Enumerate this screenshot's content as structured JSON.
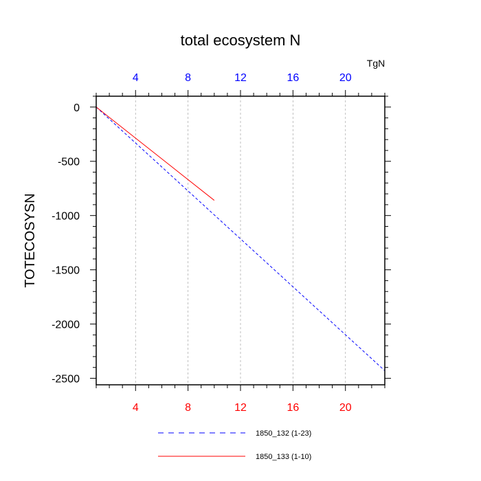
{
  "chart_data": {
    "type": "line",
    "title": "total ecosystem N",
    "unit_label": "TgN",
    "ylabel": "TOTECOSYSN",
    "xlabel": "",
    "xlim": [
      1,
      23
    ],
    "ylim": [
      -2560,
      100
    ],
    "x_ticks": [
      4,
      8,
      12,
      16,
      20
    ],
    "y_ticks": [
      0,
      -500,
      -1000,
      -1500,
      -2000,
      -2500
    ],
    "grid_vertical": true,
    "legend_position": "bottom",
    "series": [
      {
        "name": "1850_132 (1-23)",
        "color": "#0000ff",
        "style": "dashed",
        "x": [
          1,
          23
        ],
        "y": [
          0,
          -2430
        ]
      },
      {
        "name": "1850_133 (1-10)",
        "color": "#ff0000",
        "style": "solid",
        "x": [
          1,
          10
        ],
        "y": [
          0,
          -860
        ]
      }
    ]
  }
}
